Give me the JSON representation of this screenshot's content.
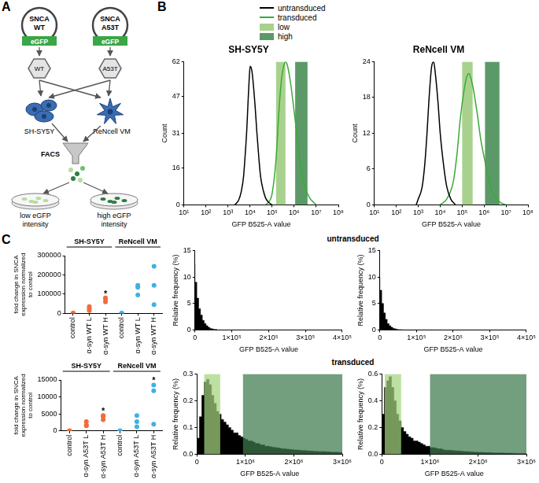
{
  "panel_labels": [
    "A",
    "B",
    "C"
  ],
  "diagram": {
    "plasmids": [
      {
        "label": "SNCA WT",
        "tag": "eGFP",
        "virus": "WT"
      },
      {
        "label": "SNCA A53T",
        "tag": "eGFP",
        "virus": "A53T"
      }
    ],
    "cells": [
      "SH-SY5Y",
      "ReNcell VM"
    ],
    "sorter": "FACS",
    "outputs": [
      "low eGFP intensity",
      "high eGFP intensity"
    ]
  },
  "row_titles": [
    "untransduced",
    "transduced"
  ],
  "chart_data": [
    {
      "type": "line",
      "title": "SH-SY5Y",
      "log": "x",
      "grid": false,
      "legend": "top",
      "x_label": "GFP B525-A value",
      "y_label": "Count",
      "xlim": [
        10,
        100000000
      ],
      "xticks": [
        {
          "value": 10,
          "label": "10¹"
        },
        {
          "value": 100,
          "label": "10²"
        },
        {
          "value": 1000,
          "label": "10³"
        },
        {
          "value": 10000,
          "label": "10⁴"
        },
        {
          "value": 100000,
          "label": "10⁵"
        },
        {
          "value": 1000000,
          "label": "10⁶"
        },
        {
          "value": 10000000,
          "label": "10⁷"
        },
        {
          "value": 100000000,
          "label": "10⁸"
        }
      ],
      "ylim": [
        0,
        62
      ],
      "yticks": [
        0,
        16,
        31,
        47,
        62
      ],
      "series": [
        {
          "name": "untransduced",
          "color": "#000000",
          "x": [
            2000,
            3000,
            4000,
            5000,
            6000,
            7000,
            8000,
            9000,
            10000,
            12000,
            14000,
            17000,
            20000,
            25000,
            30000,
            40000,
            50000,
            70000,
            100000
          ],
          "values": [
            0,
            2,
            6,
            12,
            22,
            32,
            44,
            54,
            60,
            58,
            52,
            42,
            32,
            20,
            12,
            6,
            3,
            1,
            0
          ]
        },
        {
          "name": "transduced",
          "color": "#3aaa35",
          "x": [
            50000,
            80000,
            100000,
            150000,
            200000,
            250000,
            300000,
            400000,
            500000,
            700000,
            1000000,
            1500000,
            2000000,
            3000000,
            5000000,
            10000000
          ],
          "values": [
            0,
            2,
            5,
            20,
            40,
            52,
            58,
            62,
            60,
            52,
            40,
            26,
            16,
            8,
            3,
            0
          ]
        }
      ],
      "gates": [
        {
          "name": "low",
          "color": "#a9d18e",
          "range": [
            150000,
            400000
          ]
        },
        {
          "name": "high",
          "color": "#5b9a68",
          "range": [
            1100000,
            4000000
          ]
        }
      ]
    },
    {
      "type": "line",
      "title": "ReNcell VM",
      "log": "x",
      "grid": false,
      "x_label": "GFP B525-A value",
      "y_label": "Count",
      "xlim": [
        10,
        100000000
      ],
      "xticks": [
        {
          "value": 10,
          "label": "10¹"
        },
        {
          "value": 100,
          "label": "10²"
        },
        {
          "value": 1000,
          "label": "10³"
        },
        {
          "value": 10000,
          "label": "10⁴"
        },
        {
          "value": 100000,
          "label": "10⁵"
        },
        {
          "value": 1000000,
          "label": "10⁶"
        },
        {
          "value": 10000000,
          "label": "10⁷"
        },
        {
          "value": 100000000,
          "label": "10⁸"
        }
      ],
      "ylim": [
        0,
        24
      ],
      "yticks": [
        0,
        6,
        12,
        18,
        24
      ],
      "series": [
        {
          "name": "untransduced",
          "color": "#000000",
          "x": [
            800,
            1000,
            1500,
            2000,
            2500,
            3000,
            4000,
            5000,
            6000,
            8000,
            10000,
            15000,
            20000,
            30000,
            50000
          ],
          "values": [
            0,
            1,
            3,
            7,
            12,
            17,
            23,
            24,
            22,
            17,
            12,
            6,
            3,
            1,
            0
          ]
        },
        {
          "name": "transduced",
          "color": "#3aaa35",
          "x": [
            10000,
            20000,
            40000,
            60000,
            80000,
            100000,
            150000,
            200000,
            300000,
            500000,
            700000,
            1000000,
            2000000,
            3000000,
            5000000,
            10000000
          ],
          "values": [
            0,
            1,
            4,
            9,
            14,
            17,
            21,
            22,
            20,
            15,
            11,
            8,
            3,
            1.5,
            0.5,
            0
          ]
        }
      ],
      "gates": [
        {
          "color": "#a9d18e",
          "range": [
            100000,
            300000
          ]
        },
        {
          "color": "#5b9a68",
          "range": [
            1100000,
            5000000
          ]
        }
      ]
    },
    {
      "type": "scatter",
      "grid": false,
      "y_label": "fold change in SNCA expression normalized to control",
      "categories": [
        "control",
        "α-syn WT L",
        "α-syn WT H",
        "control",
        "α-syn WT L",
        "α-syn WT H"
      ],
      "ylim": [
        0,
        300000
      ],
      "yticks": [
        0,
        100000,
        200000,
        300000
      ],
      "series": [
        {
          "name": "SH-SY5Y",
          "color": "#f26b3a",
          "values": [
            [
              1,
              1,
              1
            ],
            [
              15000,
              25000,
              35000
            ],
            [
              60000,
              75000,
              80000
            ],
            null,
            null,
            null
          ],
          "annotations": [
            null,
            null,
            "*",
            null,
            null,
            null
          ]
        },
        {
          "name": "ReNcell VM",
          "color": "#3fb1e3",
          "values": [
            null,
            null,
            null,
            [
              1,
              1,
              1
            ],
            [
              95000,
              135000,
              145000
            ],
            [
              45000,
              145000,
              245000
            ]
          ],
          "annotations": [
            null,
            null,
            null,
            null,
            null,
            null
          ]
        }
      ]
    },
    {
      "type": "scatter",
      "grid": false,
      "y_label": "fold change in SNCA expression normalized to control",
      "categories": [
        "control",
        "α-syn A53T L",
        "α-syn A53T H",
        "control",
        "α-syn A53T L",
        "α-syn A53T H"
      ],
      "ylim": [
        0,
        15000
      ],
      "yticks": [
        0,
        5000,
        10000,
        15000
      ],
      "series": [
        {
          "name": "SH-SY5Y",
          "color": "#f26b3a",
          "values": [
            [
              1,
              1,
              1
            ],
            [
              1500,
              1700,
              2700
            ],
            [
              3300,
              4300,
              4500
            ],
            null,
            null,
            null
          ],
          "annotations": [
            null,
            null,
            "*",
            null,
            null,
            null
          ]
        },
        {
          "name": "ReNcell VM",
          "color": "#3fb1e3",
          "values": [
            null,
            null,
            null,
            [
              1,
              1,
              1
            ],
            [
              1200,
              2700,
              4500
            ],
            [
              2000,
              11800,
              13500
            ]
          ],
          "annotations": [
            null,
            null,
            null,
            null,
            null,
            "*"
          ]
        }
      ]
    },
    {
      "type": "histogram",
      "grid": false,
      "color": "#000000",
      "x_label": "GFP B525-A value",
      "y_label": "Relative frequency (%)",
      "xlim": [
        0,
        400000
      ],
      "xticks": [
        0,
        {
          "value": 100000,
          "label": "1×10⁵"
        },
        {
          "value": 200000,
          "label": "2×10⁵"
        },
        {
          "value": 300000,
          "label": "3×10⁵"
        },
        {
          "value": 400000,
          "label": "4×10⁵"
        }
      ],
      "ylim": [
        0,
        15
      ],
      "yticks": [
        0,
        5,
        10,
        15
      ],
      "bins": [
        0,
        5000,
        10000,
        15000,
        20000,
        25000,
        30000,
        35000,
        40000,
        45000,
        50000,
        55000,
        60000
      ],
      "values": [
        12.5,
        9,
        6,
        4,
        2.8,
        1.8,
        1.2,
        0.8,
        0.5,
        0.3,
        0.2,
        0.1
      ],
      "gates": []
    },
    {
      "type": "histogram",
      "grid": false,
      "color": "#000000",
      "x_label": "GFP B525-A value",
      "y_label": "Relative frequency (%)",
      "xlim": [
        0,
        400000
      ],
      "xticks": [
        0,
        {
          "value": 100000,
          "label": "1×10⁵"
        },
        {
          "value": 200000,
          "label": "2×10⁵"
        },
        {
          "value": 300000,
          "label": "3×10⁵"
        },
        {
          "value": 400000,
          "label": "4×10⁵"
        }
      ],
      "ylim": [
        0,
        15
      ],
      "yticks": [
        0,
        5,
        10,
        15
      ],
      "bins": [
        0,
        5000,
        10000,
        15000,
        20000,
        25000,
        30000,
        35000,
        40000,
        45000,
        50000,
        55000,
        60000
      ],
      "values": [
        10,
        7.5,
        5,
        3.2,
        2,
        1.2,
        0.8,
        0.5,
        0.3,
        0.2,
        0.1,
        0.05
      ],
      "gates": []
    },
    {
      "type": "histogram",
      "grid": false,
      "color": "#000000",
      "x_label": "GFP B525-A value",
      "y_label": "Relative frequency (%)",
      "xlim": [
        0,
        3000000
      ],
      "xticks": [
        0,
        {
          "value": 1000000,
          "label": "1×10⁶"
        },
        {
          "value": 2000000,
          "label": "2×10⁶"
        },
        {
          "value": 3000000,
          "label": "3×10⁶"
        }
      ],
      "ylim": [
        0,
        0.3
      ],
      "yticks": [
        {
          "value": 0,
          "label": "0.0"
        },
        0.1,
        0.2,
        0.3
      ],
      "bins": [
        0,
        50000,
        100000,
        150000,
        200000,
        250000,
        300000,
        350000,
        400000,
        450000,
        500000,
        550000,
        600000,
        650000,
        700000,
        750000,
        800000,
        850000,
        900000,
        950000,
        1000000,
        1050000,
        1100000,
        1150000,
        1200000,
        1250000,
        1300000,
        1350000,
        1400000,
        1450000,
        1500000,
        1550000,
        1600000,
        1650000,
        1700000,
        1750000,
        1800000,
        1850000,
        1900000,
        1950000,
        2000000,
        2050000,
        2100000,
        2150000,
        2200000,
        2250000,
        2300000,
        2350000,
        2400000,
        2450000,
        2500000,
        2550000,
        2600000,
        2650000,
        2700000,
        2750000,
        2800000,
        2850000,
        2900000,
        2950000,
        3000000
      ],
      "values": [
        0.02,
        0.06,
        0.14,
        0.22,
        0.27,
        0.28,
        0.26,
        0.22,
        0.19,
        0.16,
        0.15,
        0.13,
        0.12,
        0.11,
        0.1,
        0.09,
        0.08,
        0.08,
        0.07,
        0.065,
        0.06,
        0.055,
        0.05,
        0.05,
        0.045,
        0.04,
        0.04,
        0.035,
        0.035,
        0.03,
        0.03,
        0.028,
        0.026,
        0.025,
        0.024,
        0.022,
        0.02,
        0.02,
        0.019,
        0.018,
        0.017,
        0.016,
        0.016,
        0.015,
        0.014,
        0.014,
        0.013,
        0.012,
        0.012,
        0.011,
        0.011,
        0.01,
        0.01,
        0.01,
        0.009,
        0.009,
        0.008,
        0.008,
        0.008,
        0.007
      ],
      "gates": [
        {
          "color": "#a3d47e",
          "range": [
            150000,
            480000
          ]
        },
        {
          "color": "#3d7a4e",
          "range": [
            950000,
            3000000
          ]
        }
      ]
    },
    {
      "type": "histogram",
      "grid": false,
      "color": "#000000",
      "x_label": "GFP B525-A value",
      "y_label": "Relative frequency (%)",
      "xlim": [
        0,
        3000000
      ],
      "xticks": [
        0,
        {
          "value": 1000000,
          "label": "1×10⁶"
        },
        {
          "value": 2000000,
          "label": "2×10⁶"
        },
        {
          "value": 3000000,
          "label": "3×10⁶"
        }
      ],
      "ylim": [
        0,
        0.6
      ],
      "yticks": [
        {
          "value": 0,
          "label": "0.0"
        },
        0.2,
        0.4,
        0.6
      ],
      "bins": [
        0,
        50000,
        100000,
        150000,
        200000,
        250000,
        300000,
        350000,
        400000,
        450000,
        500000,
        550000,
        600000,
        650000,
        700000,
        750000,
        800000,
        850000,
        900000,
        950000,
        1000000,
        1050000,
        1100000,
        1150000,
        1200000,
        1250000,
        1300000,
        1350000,
        1400000,
        1450000,
        1500000,
        1550000,
        1600000,
        1650000,
        1700000,
        1750000,
        1800000,
        1850000,
        1900000,
        1950000,
        2000000,
        2050000,
        2100000,
        2150000,
        2200000,
        2250000,
        2300000,
        2350000,
        2400000,
        2450000,
        2500000,
        2550000,
        2600000,
        2650000,
        2700000,
        2750000,
        2800000,
        2850000,
        2900000,
        2950000,
        3000000
      ],
      "values": [
        0.05,
        0.3,
        0.5,
        0.55,
        0.58,
        0.5,
        0.4,
        0.3,
        0.25,
        0.2,
        0.17,
        0.15,
        0.13,
        0.12,
        0.1,
        0.1,
        0.09,
        0.08,
        0.07,
        0.06,
        0.06,
        0.05,
        0.05,
        0.045,
        0.04,
        0.04,
        0.035,
        0.03,
        0.03,
        0.03,
        0.028,
        0.026,
        0.025,
        0.024,
        0.022,
        0.02,
        0.02,
        0.018,
        0.017,
        0.016,
        0.015,
        0.014,
        0.014,
        0.013,
        0.012,
        0.012,
        0.011,
        0.01,
        0.01,
        0.01,
        0.009,
        0.009,
        0.008,
        0.008,
        0.008,
        0.007,
        0.007,
        0.006,
        0.006,
        0.006
      ],
      "gates": [
        {
          "color": "#a3d47e",
          "range": [
            60000,
            400000
          ]
        },
        {
          "color": "#3d7a4e",
          "range": [
            1000000,
            3000000
          ]
        }
      ]
    }
  ]
}
